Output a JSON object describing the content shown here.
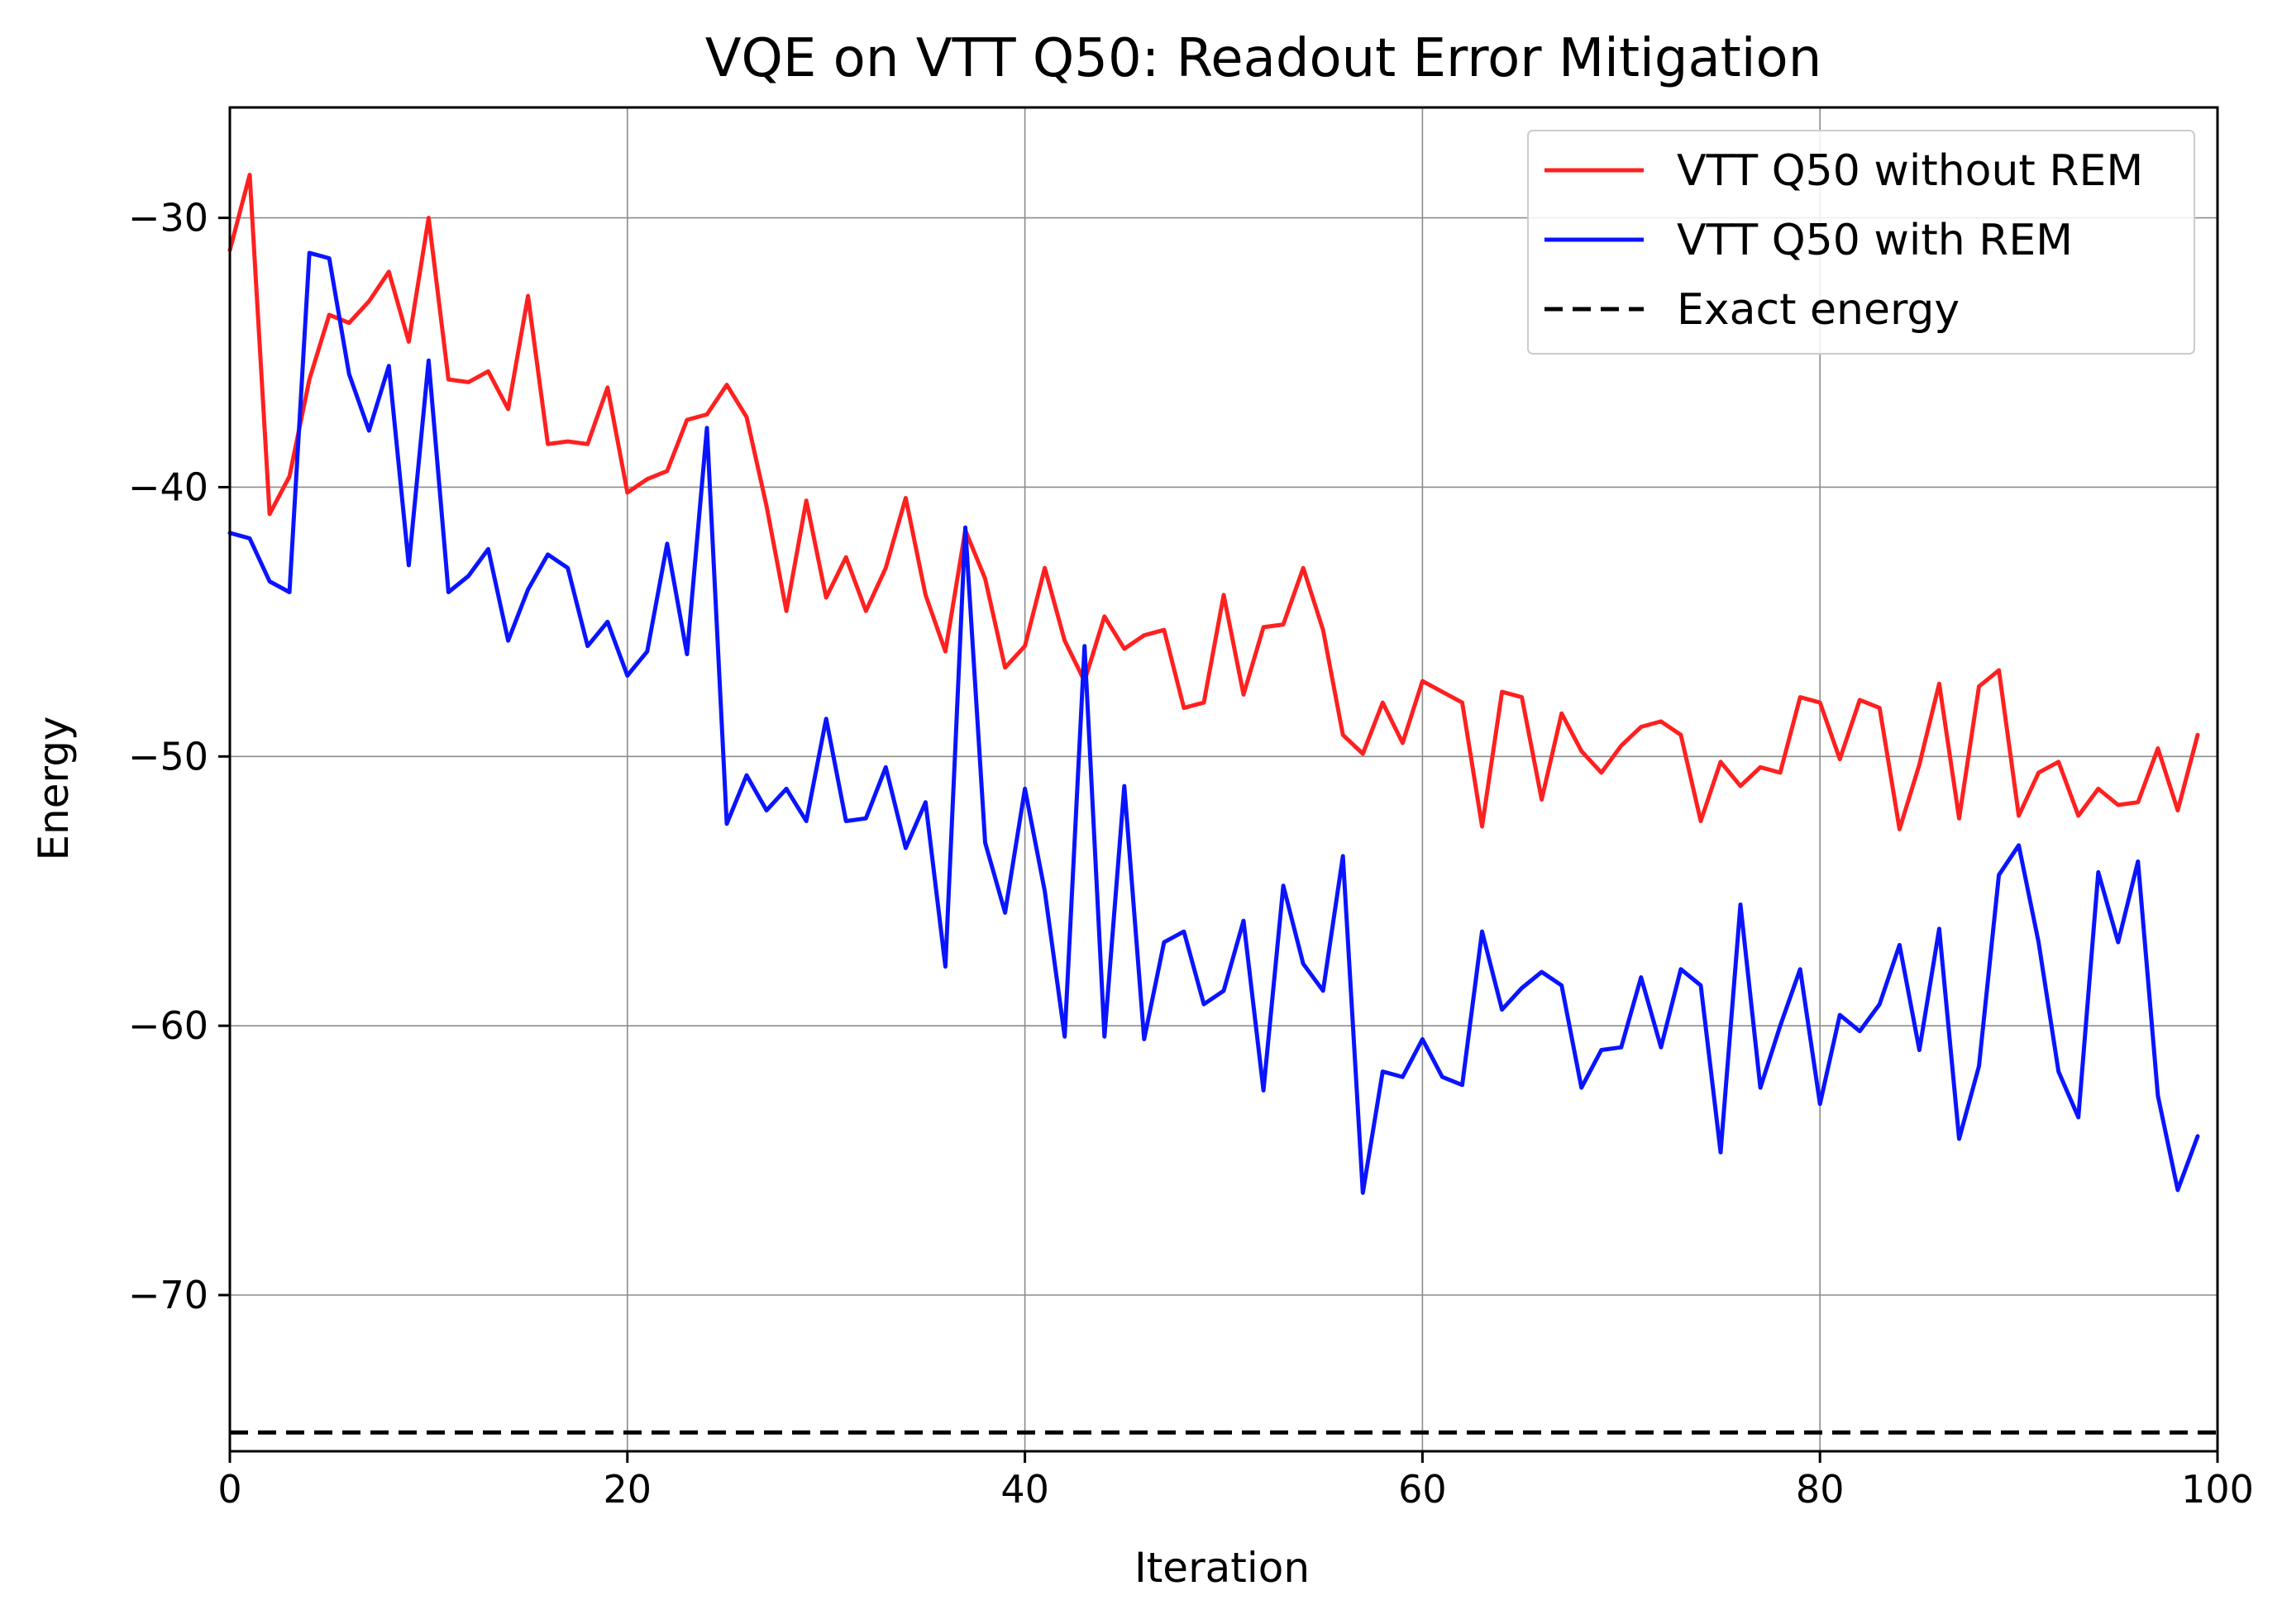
{
  "chart_data": {
    "type": "line",
    "title": "VQE on VTT Q50: Readout Error Mitigation",
    "xlabel": "Iteration",
    "ylabel": "Energy",
    "xlim": [
      0,
      100
    ],
    "ylim": [
      -75.8,
      -25.9
    ],
    "xticks": [
      0,
      20,
      40,
      60,
      80,
      100
    ],
    "xtick_labels": [
      "0",
      "20",
      "40",
      "60",
      "80",
      "100"
    ],
    "yticks": [
      -30,
      -40,
      -50,
      -60,
      -70
    ],
    "ytick_labels": [
      "−30",
      "−40",
      "−50",
      "−60",
      "−70"
    ],
    "grid": true,
    "legend_position": "top-right",
    "series": [
      {
        "name": "VTT Q50 without REM",
        "color": "#ff2020",
        "style": "solid",
        "x_start": 0,
        "values": [
          -31.2,
          -28.4,
          -41.0,
          -39.6,
          -36.0,
          -33.6,
          -33.9,
          -33.1,
          -32.0,
          -34.6,
          -30.0,
          -36.0,
          -36.1,
          -35.7,
          -37.1,
          -32.9,
          -38.4,
          -38.3,
          -38.4,
          -36.3,
          -40.2,
          -39.7,
          -39.4,
          -37.5,
          -37.3,
          -36.2,
          -37.4,
          -40.7,
          -44.6,
          -40.5,
          -44.1,
          -42.6,
          -44.6,
          -43.0,
          -40.4,
          -44.0,
          -46.1,
          -41.6,
          -43.4,
          -46.7,
          -45.9,
          -43.0,
          -45.7,
          -47.2,
          -44.8,
          -46.0,
          -45.5,
          -45.3,
          -48.2,
          -48.0,
          -44.0,
          -47.7,
          -45.2,
          -45.1,
          -43.0,
          -45.3,
          -49.2,
          -49.9,
          -48.0,
          -49.5,
          -47.2,
          -47.6,
          -48.0,
          -52.6,
          -47.6,
          -47.8,
          -51.6,
          -48.4,
          -49.8,
          -50.6,
          -49.6,
          -48.9,
          -48.7,
          -49.2,
          -52.4,
          -50.2,
          -51.1,
          -50.4,
          -50.6,
          -47.8,
          -48.0,
          -50.1,
          -47.9,
          -48.2,
          -52.7,
          -50.3,
          -47.3,
          -52.3,
          -47.4,
          -46.8,
          -52.2,
          -50.6,
          -50.2,
          -52.2,
          -51.2,
          -51.8,
          -51.7,
          -49.7,
          -52.0,
          -49.2
        ]
      },
      {
        "name": "VTT Q50 with REM",
        "color": "#0a14ff",
        "style": "solid",
        "x_start": 0,
        "values": [
          -41.7,
          -41.9,
          -43.5,
          -43.9,
          -31.3,
          -31.5,
          -35.8,
          -37.9,
          -35.5,
          -42.9,
          -35.3,
          -43.9,
          -43.3,
          -42.3,
          -45.7,
          -43.8,
          -42.5,
          -43.0,
          -45.9,
          -45.0,
          -47.0,
          -46.1,
          -42.1,
          -46.2,
          -37.8,
          -52.5,
          -50.7,
          -52.0,
          -51.2,
          -52.4,
          -48.6,
          -52.4,
          -52.3,
          -50.4,
          -53.4,
          -51.7,
          -57.8,
          -41.5,
          -53.2,
          -55.8,
          -51.2,
          -55.0,
          -60.4,
          -45.9,
          -60.4,
          -51.1,
          -60.5,
          -56.9,
          -56.5,
          -59.2,
          -58.7,
          -56.1,
          -62.4,
          -54.8,
          -57.7,
          -58.7,
          -53.7,
          -66.2,
          -61.7,
          -61.9,
          -60.5,
          -61.9,
          -62.2,
          -56.5,
          -59.4,
          -58.6,
          -58.0,
          -58.5,
          -62.3,
          -60.9,
          -60.8,
          -58.2,
          -60.8,
          -57.9,
          -58.5,
          -64.7,
          -55.5,
          -62.3,
          -60.0,
          -57.9,
          -62.9,
          -59.6,
          -60.2,
          -59.2,
          -57.0,
          -60.9,
          -56.4,
          -64.2,
          -61.5,
          -54.4,
          -53.3,
          -56.9,
          -61.7,
          -63.4,
          -54.3,
          -56.9,
          -53.9,
          -62.6,
          -66.1,
          -64.1
        ]
      },
      {
        "name": "Exact energy",
        "color": "#000000",
        "style": "dashed",
        "constant": -75.1
      }
    ]
  }
}
